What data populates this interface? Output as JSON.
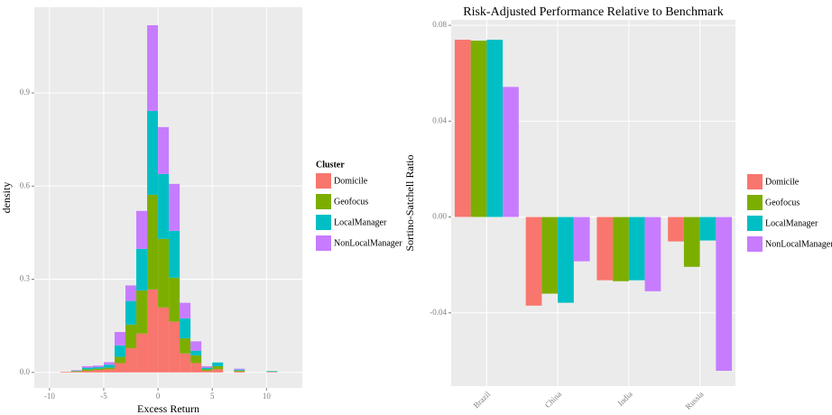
{
  "chart_data": [
    {
      "type": "histogram",
      "x_label": "Excess Return",
      "y_label": "density",
      "legend_title": "Cluster",
      "bins": [
        -9,
        -8,
        -7,
        -6,
        -5,
        -4,
        -3,
        -2,
        -1,
        0,
        1,
        2,
        3,
        4,
        5,
        6,
        7,
        8,
        9,
        10,
        11
      ],
      "series": [
        {
          "name": "Domicile",
          "color": "#F8766D",
          "values": [
            0.002,
            0.002,
            0.005,
            0.008,
            0.01,
            0.03,
            0.078,
            0.125,
            0.267,
            0.209,
            0.163,
            0.061,
            0.03,
            0.005,
            0.01,
            0,
            0.003,
            0,
            0,
            0.002
          ]
        },
        {
          "name": "Geofocus",
          "color": "#7CAE00",
          "values": [
            0,
            0.002,
            0.005,
            0.004,
            0.005,
            0.02,
            0.076,
            0.139,
            0.305,
            0.221,
            0.142,
            0.049,
            0.025,
            0.005,
            0.01,
            0,
            0.003,
            0,
            0,
            0
          ]
        },
        {
          "name": "LocalManager",
          "color": "#00BFC4",
          "values": [
            0,
            0.001,
            0.005,
            0.005,
            0.01,
            0.037,
            0.076,
            0.134,
            0.27,
            0.209,
            0.151,
            0.064,
            0.015,
            0.005,
            0.012,
            0,
            0.003,
            0,
            0,
            0.002
          ]
        },
        {
          "name": "NonLocalManager",
          "color": "#C77CFF",
          "values": [
            0,
            0.002,
            0.005,
            0.005,
            0.008,
            0.043,
            0.05,
            0.122,
            0.276,
            0.151,
            0.151,
            0.05,
            0.03,
            0.005,
            0,
            0,
            0.003,
            0,
            0,
            0
          ]
        }
      ],
      "xlim": [
        -11.4,
        13.3
      ],
      "ylim": [
        -0.05,
        1.176
      ],
      "xticks": [
        -10,
        -5,
        0,
        5,
        10
      ],
      "yticks": [
        {
          "value": 0,
          "label": "0.0"
        },
        0.3,
        0.6,
        0.9
      ],
      "grid": true
    },
    {
      "type": "bar",
      "title": "Risk-Adjusted Performance Relative to Benchmark",
      "y_label": "Sortino-Satchell Ratio",
      "categories": [
        "Brazil",
        "China",
        "India",
        "Russia"
      ],
      "series": [
        {
          "name": "Domicile",
          "color": "#F8766D",
          "values": [
            0.074,
            -0.037,
            -0.0264,
            -0.0102
          ]
        },
        {
          "name": "Geofocus",
          "color": "#7CAE00",
          "values": [
            0.0736,
            -0.032,
            -0.0268,
            -0.0208
          ]
        },
        {
          "name": "LocalManager",
          "color": "#00BFC4",
          "values": [
            0.074,
            -0.0358,
            -0.0264,
            -0.0098
          ]
        },
        {
          "name": "NonLocalManager",
          "color": "#C77CFF",
          "values": [
            0.0543,
            -0.0185,
            -0.031,
            -0.0642
          ]
        }
      ],
      "ylim": [
        -0.0706,
        0.0823
      ],
      "yticks": [
        -0.04,
        {
          "value": 0,
          "label": "0.00"
        },
        0.04,
        0.08
      ],
      "grid": true
    }
  ]
}
